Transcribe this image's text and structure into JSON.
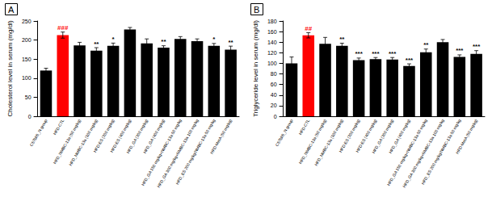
{
  "chart_data": [
    {
      "type": "bar",
      "title": "A",
      "y_label": "Cholesterol level in serum (mg/dl)",
      "categories": [
        "C57bl/6_N group",
        "HFD-CTL",
        "HFD_NMBC-13a (50 mg/kg)",
        "HFD_NMBC-13a (100 mg/kg)",
        "HFD-ES (200 mg/kg)",
        "HFD-ES (400 mg/kg)",
        "HFD_GA (200 mg/kg)",
        "HFD_GA (400 mg/kg)",
        "HFD_GA 150 mg/kg+NMBC-13a 50 mg/kg",
        "HFD_GA 300 mg/kg+NMBC-13a 100 mg/kg",
        "HFD_ES 200 mg/kg/NMBC-13a 50 mg/kg",
        "HFD-MetA (50 mg/kg)"
      ],
      "values": [
        120,
        213,
        186,
        172,
        185,
        228,
        191,
        180,
        203,
        197,
        185,
        175
      ],
      "errors": [
        6,
        8,
        8,
        8,
        7,
        5,
        12,
        5,
        6,
        6,
        6,
        9
      ],
      "annotations": [
        null,
        "###",
        null,
        "**",
        "*",
        null,
        null,
        "**",
        null,
        null,
        "*",
        "**"
      ],
      "colors": [
        "#000000",
        "#ff0000",
        "#000000",
        "#000000",
        "#000000",
        "#000000",
        "#000000",
        "#000000",
        "#000000",
        "#000000",
        "#000000",
        "#000000"
      ],
      "ylim": [
        0,
        250
      ],
      "yticks": [
        0,
        50,
        100,
        150,
        200,
        250
      ],
      "grid": false
    },
    {
      "type": "bar",
      "title": "B",
      "y_label": "Triglyceride level in serum (mg/dl)",
      "categories": [
        "C57bl/6_N group",
        "HFD-CTL",
        "HFD_NMBC-13a (50 mg/kg)",
        "HFD_NMBC-13a (100 mg/kg)",
        "HFD-ES (200 mg/kg)",
        "HFD-ES (400 mg/kg)",
        "HFD_GA (200 mg/kg)",
        "HFD_GA (400 mg/kg)",
        "HFD_GA 150 mg/kg+NMBC-13a 50 mg/kg",
        "HFD_GA 300 mg/kg+NMBC-13a 100 mg/kg",
        "HFD_ES 200 mg/kg/NMBC-13a 50 mg/kg",
        "HFD-MetA (50 mg/kg)"
      ],
      "values": [
        100,
        153,
        137,
        133,
        106,
        108,
        107,
        95,
        121,
        140,
        112,
        118
      ],
      "errors": [
        12,
        5,
        12,
        5,
        4,
        3,
        4,
        4,
        6,
        5,
        4,
        6
      ],
      "annotations": [
        null,
        "##",
        null,
        "**",
        "***",
        "***",
        "***",
        "***",
        "**",
        null,
        "***",
        "***"
      ],
      "colors": [
        "#000000",
        "#ff0000",
        "#000000",
        "#000000",
        "#000000",
        "#000000",
        "#000000",
        "#000000",
        "#000000",
        "#000000",
        "#000000",
        "#000000"
      ],
      "ylim": [
        0,
        180
      ],
      "yticks": [
        0,
        20,
        40,
        60,
        80,
        100,
        120,
        140,
        160,
        180
      ],
      "grid": false
    }
  ]
}
